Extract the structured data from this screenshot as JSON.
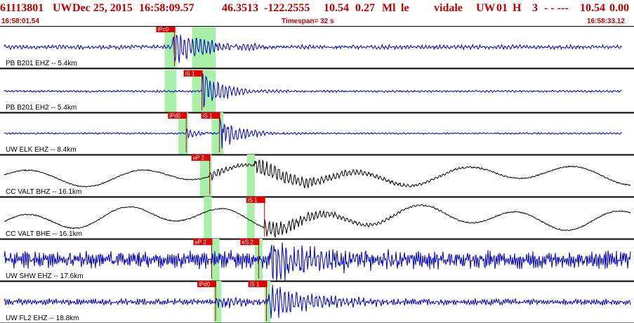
{
  "header": {
    "event_id": "61113801",
    "network": "UW",
    "date": "Dec 25, 2015",
    "time": "16:58:09.57",
    "lat": "46.3513",
    "lon": "-122.2555",
    "depth": "10.54",
    "magnitude": "0.27",
    "mag_type": "Ml",
    "mag_flag": "le",
    "analyst": "vidale",
    "source": "UW",
    "version": "01",
    "type": "H",
    "quality": "3",
    "dashes": "- - ---",
    "depth_repeat": "10.54",
    "end_value": "0.00"
  },
  "subheader": {
    "start_time": "16:58:01.54",
    "timespan": "Timespan=  32 s",
    "end_time": "16:58:33.12"
  },
  "colors": {
    "header": "#c00000",
    "trace_high_gain": "#0000c8",
    "trace_broadband": "#000000",
    "pick_box": "#e00000",
    "pick_line": "#c00000",
    "window": "#a8f0a8",
    "divider": "#000000"
  },
  "chart_data": {
    "type": "line",
    "x_unit": "s",
    "x_range": [
      0,
      32
    ],
    "traces": [
      {
        "label": "PB B201 EHZ -- 5.4km",
        "color": "trace_high_gain",
        "length": 31.55,
        "noise_amp": 0.12,
        "noise_freq": 0.9,
        "arrivals": [
          {
            "t": 8.6,
            "amp": 1.0,
            "decay": 1.8
          }
        ],
        "windows": [
          [
            8.2,
            8.8
          ],
          [
            9.6,
            10.8
          ]
        ],
        "picks": [
          {
            "label": "iPc0",
            "t": 8.7
          }
        ]
      },
      {
        "label": "PB B201 EH2 -- 5.4km",
        "color": "trace_high_gain",
        "length": 31.55,
        "noise_amp": 0.06,
        "noise_freq": 0.9,
        "arrivals": [
          {
            "t": 10.1,
            "amp": 1.0,
            "decay": 1.2
          }
        ],
        "windows": [
          [
            8.2,
            8.8
          ],
          [
            9.6,
            10.8
          ]
        ],
        "picks": [
          {
            "label": "iS 1",
            "t": 10.1
          }
        ]
      },
      {
        "label": "UW ELK EHZ -- 8.4km",
        "color": "trace_high_gain",
        "length": 31.55,
        "noise_amp": 0.05,
        "noise_freq": 0.9,
        "arrivals": [
          {
            "t": 9.3,
            "amp": 0.25,
            "decay": 1.0
          },
          {
            "t": 11.0,
            "amp": 1.0,
            "decay": 1.1
          }
        ],
        "windows": [
          [
            8.9,
            9.4
          ],
          [
            10.6,
            11.2
          ]
        ],
        "picks": [
          {
            "label": "iPd0",
            "t": 9.3
          },
          {
            "label": "iS 1",
            "t": 11.0
          }
        ]
      },
      {
        "label": "CC VALT BHZ -- 16.1km",
        "color": "trace_broadband",
        "length": 32,
        "noise_amp": 0.35,
        "noise_freq": 0.18,
        "arrivals": [
          {
            "t": 10.5,
            "amp": 0.25,
            "decay": 1.5
          },
          {
            "t": 12.8,
            "amp": 0.55,
            "decay": 4.0
          }
        ],
        "windows": [
          [
            10.0,
            10.6
          ],
          [
            12.4,
            12.8
          ]
        ],
        "picks": [
          {
            "label": "eP 2",
            "t": 10.5
          }
        ]
      },
      {
        "label": "CC VALT BHE -- 16.1km",
        "color": "trace_broadband",
        "length": 32,
        "noise_amp": 0.4,
        "noise_freq": 0.2,
        "arrivals": [
          {
            "t": 13.3,
            "amp": 0.55,
            "decay": 3.0
          }
        ],
        "windows": [
          [
            10.2,
            10.6
          ],
          [
            12.4,
            12.8
          ]
        ],
        "picks": [
          {
            "label": "iS 1",
            "t": 13.3
          }
        ]
      },
      {
        "label": "UW SHW EHZ -- 17.6km",
        "color": "trace_high_gain",
        "length": 32,
        "noise_amp": 0.5,
        "noise_freq": 1.6,
        "arrivals": [
          {
            "t": 13.6,
            "amp": 1.0,
            "decay": 3.0
          }
        ],
        "windows": [
          [
            10.6,
            11.0
          ],
          [
            12.8,
            13.2
          ]
        ],
        "picks": [
          {
            "label": "eP 2",
            "t": 10.6
          },
          {
            "label": "eS 2",
            "t": 13.0
          }
        ]
      },
      {
        "label": "UW FL2 EHZ -- 18.8km",
        "color": "trace_high_gain",
        "length": 32,
        "noise_amp": 0.18,
        "noise_freq": 1.4,
        "arrivals": [
          {
            "t": 10.8,
            "amp": 0.3,
            "decay": 1.5
          },
          {
            "t": 13.5,
            "amp": 1.0,
            "decay": 2.5
          }
        ],
        "windows": [
          [
            10.7,
            11.1
          ],
          [
            13.3,
            13.6
          ]
        ],
        "picks": [
          {
            "label": "iPd0",
            "t": 10.8
          },
          {
            "label": "iS 1",
            "t": 13.4
          }
        ]
      }
    ]
  }
}
